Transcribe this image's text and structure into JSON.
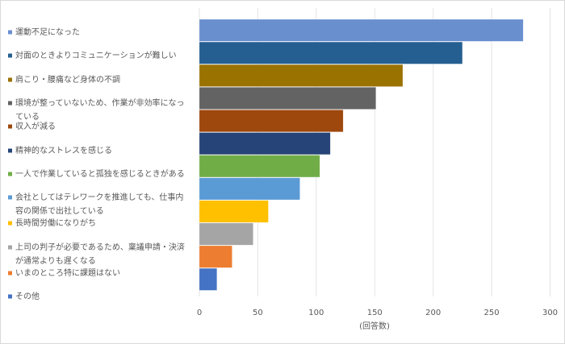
{
  "chart_data": {
    "type": "bar",
    "orientation": "horizontal",
    "categories": [
      "運動不足になった",
      "対面のときよりコミュニケーションが難しい",
      "肩こり・腰痛など身体の不調",
      "環境が整っていないため、作業が非効率になっている",
      "収入が減る",
      "精神的なストレスを感じる",
      "一人で作業していると孤独を感じるときがある",
      "会社としてはテレワークを推進しても、仕事内容の関係で出社している",
      "長時間労働になりがち",
      "上司の判子が必要であるため、稟議申請・決済が通常よりも遅くなる",
      "いまのところ特に課題はない",
      "その他"
    ],
    "label_lines": [
      [
        "運動不足になった"
      ],
      [
        "対面のときよりコミュニケーションが難しい"
      ],
      [
        "肩こり・腰痛など身体の不調"
      ],
      [
        "環境が整っていないため、作業が非効率になっ",
        "ている"
      ],
      [
        "収入が減る"
      ],
      [
        "精神的なストレスを感じる"
      ],
      [
        "一人で作業していると孤独を感じるときがある"
      ],
      [
        "会社としてはテレワークを推進しても、仕事内",
        "容の関係で出社している"
      ],
      [
        "長時間労働になりがち"
      ],
      [
        "上司の判子が必要であるため、稟議申請・決済",
        "が通常よりも遅くなる"
      ],
      [
        "いまのところ特に課題はない"
      ],
      [
        "その他"
      ]
    ],
    "values": [
      277,
      225,
      174,
      151,
      123,
      112,
      103,
      86,
      59,
      46,
      28,
      15
    ],
    "colors": [
      "#6a8fcf",
      "#255f91",
      "#9a7200",
      "#636363",
      "#9e480e",
      "#264478",
      "#70ad47",
      "#5b9bd5",
      "#ffc000",
      "#a5a5a5",
      "#ed7d31",
      "#4472c4"
    ],
    "xlabel": "(回答数)",
    "xlim": [
      0,
      300
    ],
    "xticks": [
      0,
      50,
      100,
      150,
      200,
      250,
      300
    ],
    "grid": true,
    "legend": "left"
  }
}
